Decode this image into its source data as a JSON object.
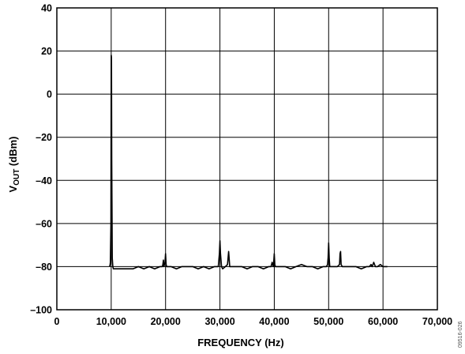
{
  "chart_data": {
    "type": "line",
    "title": "",
    "xlabel": "FREQUENCY (Hz)",
    "ylabel_main": "V",
    "ylabel_sub": "OUT",
    "ylabel_unit": " (dBm)",
    "xlim": [
      0,
      70000
    ],
    "ylim": [
      -100,
      40
    ],
    "xticks": [
      0,
      10000,
      20000,
      30000,
      40000,
      50000,
      60000,
      70000
    ],
    "xtick_labels": [
      "0",
      "10,000",
      "20,000",
      "30,000",
      "40,000",
      "50,000",
      "60,000",
      "70,000"
    ],
    "yticks": [
      -100,
      -80,
      -60,
      -40,
      -20,
      0,
      20,
      40
    ],
    "ytick_labels": [
      "–100",
      "–80",
      "–60",
      "–40",
      "–20",
      "0",
      "20",
      "40"
    ],
    "grid": true,
    "legend": "none",
    "line_color": "#000000",
    "figure_id": "09516-026",
    "series": [
      {
        "x": [
          9700,
          9800,
          9850,
          9950,
          10000,
          10050,
          10100,
          10200,
          10300,
          10400,
          10600,
          11000,
          12000,
          13000,
          14000,
          15000,
          16000,
          17000,
          18000,
          19000,
          19400,
          19500,
          19600,
          19700,
          19800,
          19900,
          20000,
          20100,
          20200,
          20300,
          20500,
          21000,
          22000,
          23000,
          24000,
          25000,
          26000,
          27000,
          28000,
          29000,
          29700,
          29900,
          30000,
          30100,
          30300,
          30500,
          31000,
          31400,
          31600,
          31800,
          32200,
          33000,
          34000,
          35000,
          36000,
          37000,
          38000,
          39000,
          39400,
          39600,
          39800,
          39900,
          40000,
          40100,
          40200,
          40500,
          41000,
          42000,
          43000,
          44000,
          45000,
          46000,
          47000,
          48000,
          49000,
          49600,
          49800,
          49900,
          50000,
          50100,
          50200,
          50500,
          51000,
          51600,
          52000,
          52100,
          52200,
          52300,
          52500,
          53000,
          54000,
          55000,
          56000,
          57000,
          57500,
          57800,
          58000,
          58300,
          58600,
          59000,
          59500,
          60000,
          60500,
          60800
        ],
        "y": [
          -80,
          -79,
          -78,
          -60,
          18,
          17,
          -30,
          -76,
          -80,
          -81,
          -81,
          -81,
          -81,
          -81,
          -81,
          -80,
          -81,
          -80,
          -81,
          -80,
          -80,
          -79,
          -77,
          -80,
          -79,
          -78,
          -74,
          -79,
          -80,
          -80,
          -80,
          -80,
          -81,
          -80,
          -80,
          -80,
          -81,
          -80,
          -81,
          -80,
          -80,
          -74,
          -68,
          -74,
          -80,
          -81,
          -80,
          -79,
          -73,
          -80,
          -80,
          -80,
          -80,
          -81,
          -80,
          -80,
          -81,
          -80,
          -80,
          -78,
          -80,
          -78,
          -74,
          -79,
          -80,
          -80,
          -80,
          -80,
          -81,
          -80,
          -79,
          -80,
          -80,
          -81,
          -80,
          -80,
          -79,
          -76,
          -69,
          -76,
          -80,
          -80,
          -80,
          -80,
          -79,
          -74,
          -73,
          -79,
          -80,
          -80,
          -80,
          -80,
          -81,
          -80,
          -80,
          -79,
          -80,
          -78,
          -80,
          -80,
          -79,
          -80,
          -80,
          -80
        ]
      }
    ]
  }
}
